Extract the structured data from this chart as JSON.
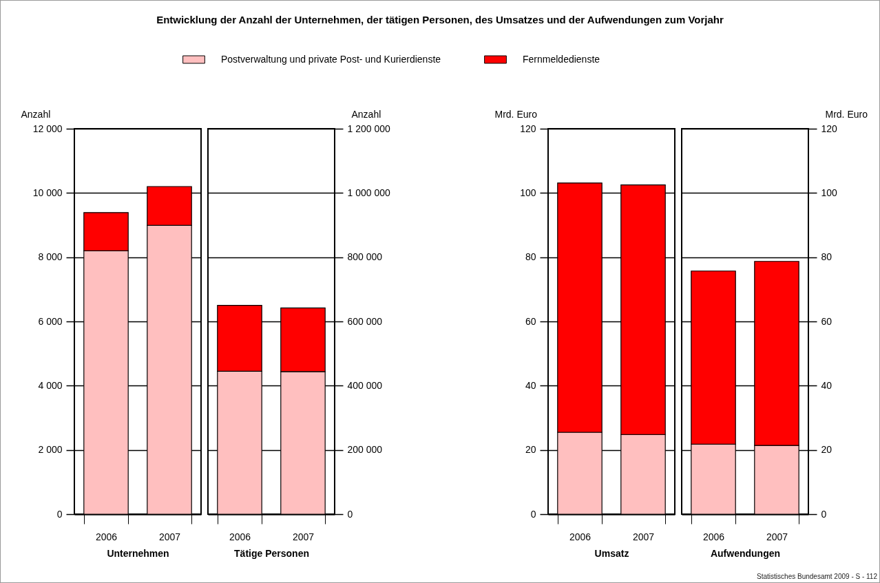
{
  "chart_data": [
    {
      "type": "bar",
      "title": "Entwicklung der Anzahl der Unternehmen, der tätigen Personen, des Umsatzes und der Aufwendungen zum Vorjahr",
      "legend": "top",
      "stacked": true,
      "grid": "y",
      "categories": [
        "2006",
        "2007"
      ],
      "xlabel": "Unternehmen",
      "ylabel": "Anzahl",
      "ylim": [
        0,
        12000
      ],
      "yticks": [
        0,
        {
          "value": 2000,
          "label": "2 000"
        },
        {
          "value": 4000,
          "label": "4 000"
        },
        {
          "value": 6000,
          "label": "6 000"
        },
        {
          "value": 8000,
          "label": "8 000"
        },
        {
          "value": 10000,
          "label": "10 000"
        },
        {
          "value": 12000,
          "label": "12 000"
        }
      ],
      "series": [
        {
          "name": "Postverwaltung und private Post- und Kurierdienste",
          "color": "#ffbfbf",
          "values": [
            8200,
            8990
          ]
        },
        {
          "name": "Fernmeldedienste",
          "color": "#ff0000",
          "values": [
            1190,
            1210
          ]
        }
      ]
    },
    {
      "type": "bar",
      "stacked": true,
      "grid": "y",
      "categories": [
        "2006",
        "2007"
      ],
      "xlabel": "Tätige Personen",
      "y2label": "Anzahl",
      "y2lim": [
        0,
        1200000
      ],
      "y2ticks": [
        0,
        {
          "value": 200000,
          "label": "200 000"
        },
        {
          "value": 400000,
          "label": "400 000"
        },
        {
          "value": 600000,
          "label": "600 000"
        },
        {
          "value": 800000,
          "label": "800 000"
        },
        {
          "value": 1000000,
          "label": "1 000 000"
        },
        {
          "value": 1200000,
          "label": "1 200 000"
        }
      ],
      "series": [
        {
          "name": "Postverwaltung und private Post- und Kurierdienste",
          "color": "#ffbfbf",
          "axis": "y2",
          "values": [
            445000,
            444000
          ]
        },
        {
          "name": "Fernmeldedienste",
          "color": "#ff0000",
          "axis": "y2",
          "values": [
            205000,
            198000
          ]
        }
      ]
    },
    {
      "type": "bar",
      "stacked": true,
      "grid": "y",
      "categories": [
        "2006",
        "2007"
      ],
      "xlabel": "Umsatz",
      "ylabel": "Mrd. Euro",
      "ylim": [
        0,
        120
      ],
      "yticks": [
        0,
        20,
        40,
        60,
        80,
        100,
        120
      ],
      "series": [
        {
          "name": "Postverwaltung und private Post- und Kurierdienste",
          "color": "#ffbfbf",
          "values": [
            25.5,
            24.8
          ]
        },
        {
          "name": "Fernmeldedienste",
          "color": "#ff0000",
          "values": [
            77.6,
            77.7
          ]
        }
      ]
    },
    {
      "type": "bar",
      "stacked": true,
      "grid": "y",
      "categories": [
        "2006",
        "2007"
      ],
      "xlabel": "Aufwendungen",
      "y2label": "Mrd. Euro",
      "y2lim": [
        0,
        120
      ],
      "y2ticks": [
        0,
        20,
        40,
        60,
        80,
        100,
        120
      ],
      "annotations": [
        "Statistisches Bundesamt 2009 - S - 112"
      ],
      "series": [
        {
          "name": "Postverwaltung und private Post- und Kurierdienste",
          "color": "#ffbfbf",
          "axis": "y2",
          "values": [
            21.8,
            21.4
          ]
        },
        {
          "name": "Fernmeldedienste",
          "color": "#ff0000",
          "axis": "y2",
          "values": [
            53.9,
            57.3
          ]
        }
      ]
    }
  ]
}
